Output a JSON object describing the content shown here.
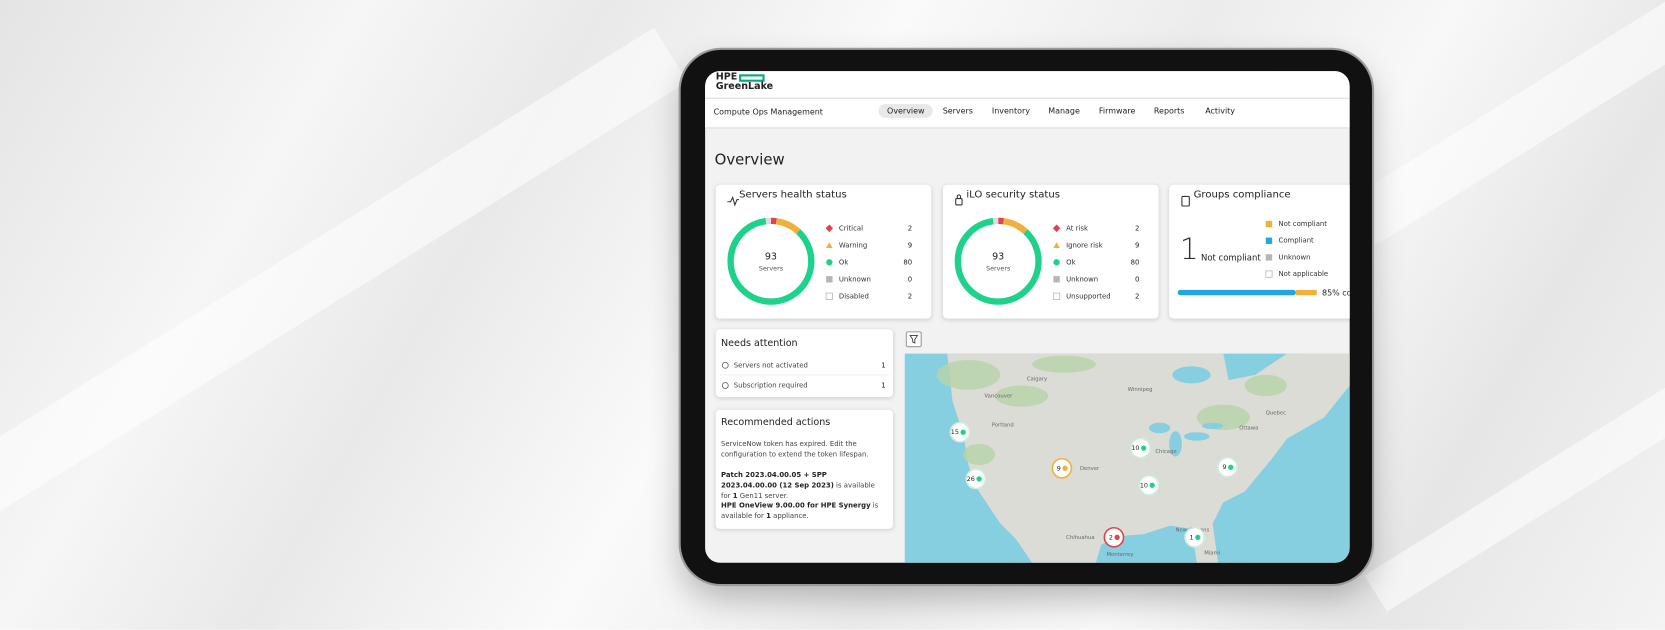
{
  "header": {
    "brand_line1": "HPE",
    "brand_line2": "GreenLake",
    "app": "Compute Ops Management",
    "tabs": [
      "Overview",
      "Servers",
      "Inventory",
      "Manage",
      "Firmware",
      "Reports",
      "Activity"
    ]
  },
  "page_title": "Overview",
  "health": {
    "title": "Servers health status",
    "total": 93,
    "total_label": "Servers",
    "items": [
      {
        "label": "Critical",
        "count": 2,
        "color": "#e0424f",
        "icon": "diamond"
      },
      {
        "label": "Warning",
        "count": 9,
        "color": "#f0b03c",
        "icon": "triangle"
      },
      {
        "label": "Ok",
        "count": 80,
        "color": "#1fd28c",
        "icon": "circle"
      },
      {
        "label": "Unknown",
        "count": 0,
        "color": "#b5b5b5",
        "icon": "square"
      },
      {
        "label": "Disabled",
        "count": 2,
        "color": "#dcdcdc",
        "icon": "outline"
      }
    ]
  },
  "ilo": {
    "title": "iLO security status",
    "total": 93,
    "total_label": "Servers",
    "items": [
      {
        "label": "At risk",
        "count": 2,
        "color": "#e0424f",
        "icon": "diamond"
      },
      {
        "label": "Ignore risk",
        "count": 9,
        "color": "#f0b03c",
        "icon": "triangle"
      },
      {
        "label": "Ok",
        "count": 80,
        "color": "#1fd28c",
        "icon": "circle"
      },
      {
        "label": "Unknown",
        "count": 0,
        "color": "#b5b5b5",
        "icon": "square"
      },
      {
        "label": "Unsupported",
        "count": 2,
        "color": "#dcdcdc",
        "icon": "outline"
      }
    ]
  },
  "compliance": {
    "title": "Groups compliance",
    "value": 1,
    "value_label": "Not compliant",
    "legend": [
      {
        "label": "Not compliant",
        "color": "#f0b03c",
        "icon": "square"
      },
      {
        "label": "Compliant",
        "color": "#1ea7e4",
        "icon": "square"
      },
      {
        "label": "Unknown",
        "color": "#b5b5b5",
        "icon": "square"
      },
      {
        "label": "Not applicable",
        "color": "#dcdcdc",
        "icon": "outline"
      }
    ],
    "percent": 85,
    "percent_label": "85% compliant"
  },
  "attention": {
    "title": "Needs attention",
    "rows": [
      {
        "label": "Servers not activated",
        "count": 1
      },
      {
        "label": "Subscription required",
        "count": 1
      }
    ]
  },
  "recommended": {
    "title": "Recommended actions",
    "items": [
      [
        {
          "text": "ServiceNow token has expired. Edit the configuration to extend the token lifespan.",
          "bold": false
        }
      ],
      [
        {
          "text": "Patch 2023.04.00.05 + SPP 2023.04.00.00 (12 Sep 2023)",
          "bold": true
        },
        {
          "text": " is available for ",
          "bold": false
        },
        {
          "text": "1",
          "bold": true
        },
        {
          "text": " Gen11 server.",
          "bold": false
        }
      ],
      [
        {
          "text": "HPE OneView 9.00.00 for HPE Synergy",
          "bold": true
        },
        {
          "text": " is available for ",
          "bold": false
        },
        {
          "text": "1",
          "bold": true
        },
        {
          "text": " appliance.",
          "bold": false
        }
      ]
    ]
  },
  "map": {
    "cities": [
      "Calgary",
      "Winnipeg",
      "Vancouver",
      "Portland",
      "Denver",
      "Chicago",
      "Ottawa",
      "Quebec",
      "New Orleans",
      "Miami",
      "Monterrey",
      "Chihuahua"
    ],
    "markers": [
      {
        "count": 15,
        "color": "#1fd28c"
      },
      {
        "count": 26,
        "color": "#1fd28c"
      },
      {
        "count": 9,
        "color": "#f0b03c"
      },
      {
        "count": 10,
        "color": "#1fd28c"
      },
      {
        "count": 10,
        "color": "#1fd28c"
      },
      {
        "count": 9,
        "color": "#1fd28c"
      },
      {
        "count": 2,
        "color": "#e0424f"
      },
      {
        "count": 1,
        "color": "#1fd28c"
      }
    ]
  }
}
